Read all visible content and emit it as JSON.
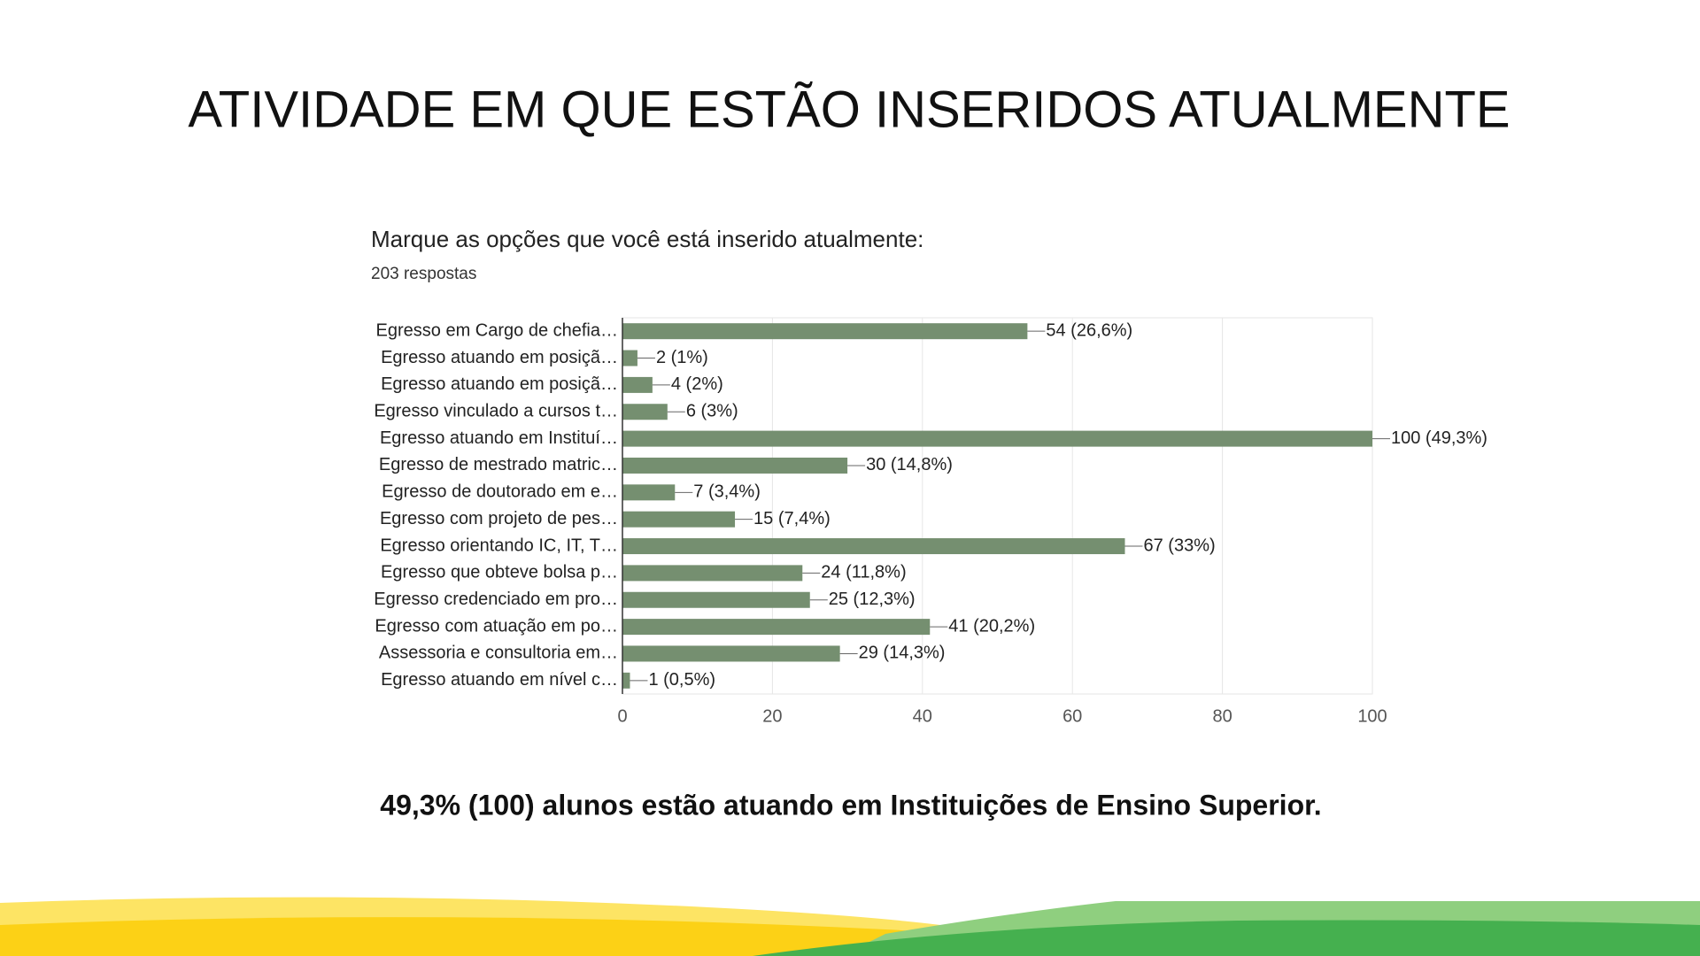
{
  "title": "ATIVIDADE EM QUE ESTÃO INSERIDOS ATUALMENTE",
  "chart_data": {
    "type": "bar",
    "orientation": "horizontal",
    "title": "Marque as opções que você está inserido atualmente:",
    "subtitle": "203 respostas",
    "categories": [
      "Egresso em Cargo de chefia…",
      "Egresso atuando em posiçã…",
      "Egresso atuando em posiçã…",
      "Egresso vinculado a cursos t…",
      "Egresso atuando em Instituí…",
      "Egresso de mestrado matric…",
      "Egresso de doutorado em e…",
      "Egresso com projeto de pes…",
      "Egresso orientando IC, IT, T…",
      "Egresso que obteve bolsa p…",
      "Egresso credenciado em pro…",
      "Egresso com atuação em po…",
      "Assessoria e consultoria em…",
      "Egresso atuando em nível c…"
    ],
    "values": [
      54,
      2,
      4,
      6,
      100,
      30,
      7,
      15,
      67,
      24,
      25,
      41,
      29,
      1
    ],
    "value_labels": [
      "54 (26,6%)",
      "2 (1%)",
      "4 (2%)",
      "6 (3%)",
      "100 (49,3%)",
      "30 (14,8%)",
      "7 (3,4%)",
      "15 (7,4%)",
      "67 (33%)",
      "24 (11,8%)",
      "25 (12,3%)",
      "41 (20,2%)",
      "29 (14,3%)",
      "1 (0,5%)"
    ],
    "color": "#758f70",
    "xlim": [
      0,
      100
    ],
    "xticks": [
      0,
      20,
      40,
      60,
      80,
      100
    ],
    "grid": true
  },
  "footer": "49,3% (100) alunos estão atuando em Instituições de Ensino Superior."
}
